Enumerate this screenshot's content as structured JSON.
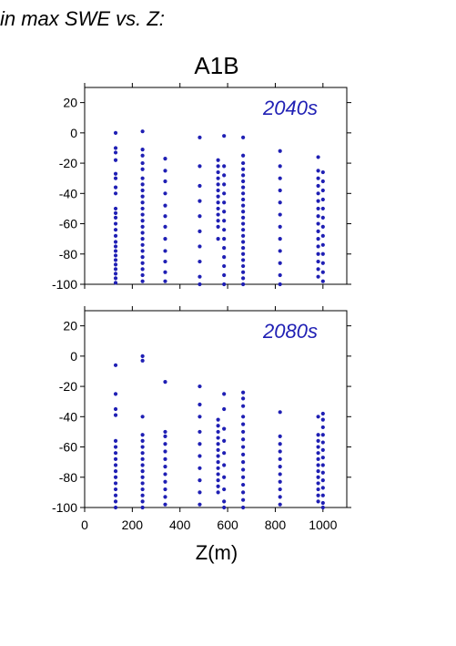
{
  "heading": "in max SWE vs. Z:",
  "chart_data": [
    {
      "type": "scatter",
      "title": "A1B",
      "panel_label": "2040s",
      "xlabel": "",
      "ylabel": "",
      "xlim": [
        0,
        1100
      ],
      "ylim": [
        -100,
        30
      ],
      "yticks": [
        20,
        0,
        -20,
        -40,
        -60,
        -80,
        -100
      ],
      "xticks": [
        0,
        200,
        400,
        600,
        800,
        1000
      ],
      "color": "#1f1fb4",
      "series": [
        {
          "x": 130,
          "y": [
            0,
            -10,
            -13,
            -18,
            -27,
            -30,
            -36,
            -40,
            -50,
            -53,
            -56,
            -60,
            -64,
            -68,
            -72,
            -75,
            -78,
            -81,
            -84,
            -87,
            -90,
            -93,
            -96,
            -99
          ]
        },
        {
          "x": 243,
          "y": [
            1,
            -11,
            -15,
            -20,
            -24,
            -30,
            -34,
            -38,
            -42,
            -46,
            -50,
            -54,
            -58,
            -62,
            -66,
            -70,
            -74,
            -78,
            -82,
            -86,
            -90,
            -94,
            -98
          ]
        },
        {
          "x": 338,
          "y": [
            -17,
            -25,
            -32,
            -40,
            -48,
            -55,
            -62,
            -70,
            -78,
            -85,
            -92,
            -98
          ]
        },
        {
          "x": 483,
          "y": [
            -3,
            -22,
            -35,
            -45,
            -55,
            -65,
            -75,
            -85,
            -95,
            -100
          ]
        },
        {
          "x": 560,
          "y": [
            -18,
            -22,
            -26,
            -30,
            -34,
            -38,
            -42,
            -46,
            -50,
            -54,
            -58,
            -62,
            -70
          ]
        },
        {
          "x": 585,
          "y": [
            -2,
            -22,
            -28,
            -34,
            -40,
            -46,
            -52,
            -58,
            -64,
            -70,
            -76,
            -82,
            -88,
            -94,
            -100
          ]
        },
        {
          "x": 665,
          "y": [
            -3,
            -15,
            -20,
            -24,
            -28,
            -32,
            -36,
            -40,
            -44,
            -48,
            -52,
            -56,
            -60,
            -64,
            -68,
            -72,
            -76,
            -80,
            -84,
            -88,
            -92,
            -96,
            -100
          ]
        },
        {
          "x": 820,
          "y": [
            -12,
            -22,
            -30,
            -38,
            -46,
            -54,
            -62,
            -70,
            -78,
            -86,
            -94,
            -100
          ]
        },
        {
          "x": 980,
          "y": [
            -16,
            -25,
            -30,
            -35,
            -40,
            -45,
            -50,
            -55,
            -60,
            -65,
            -70,
            -75,
            -80,
            -85,
            -90,
            -95
          ]
        },
        {
          "x": 1000,
          "y": [
            -26,
            -32,
            -38,
            -44,
            -50,
            -56,
            -62,
            -68,
            -74,
            -80,
            -86,
            -92,
            -98
          ]
        }
      ]
    },
    {
      "type": "scatter",
      "title": "",
      "panel_label": "2080s",
      "xlabel": "Z(m)",
      "ylabel": "",
      "xlim": [
        0,
        1100
      ],
      "ylim": [
        -100,
        30
      ],
      "yticks": [
        20,
        0,
        -20,
        -40,
        -60,
        -80,
        -100
      ],
      "xticks": [
        0,
        200,
        400,
        600,
        800,
        1000
      ],
      "xticklabels": [
        "0",
        "200",
        "400",
        "600",
        "800",
        "1000"
      ],
      "color": "#1f1fb4",
      "series": [
        {
          "x": 130,
          "y": [
            -6,
            -25,
            -35,
            -39,
            -56,
            -60,
            -64,
            -68,
            -72,
            -76,
            -80,
            -84,
            -88,
            -92,
            -96,
            -100
          ]
        },
        {
          "x": 243,
          "y": [
            0,
            -3,
            -40,
            -52,
            -56,
            -60,
            -64,
            -68,
            -72,
            -76,
            -80,
            -84,
            -88,
            -92,
            -96,
            -100
          ]
        },
        {
          "x": 338,
          "y": [
            -17,
            -50,
            -53,
            -58,
            -63,
            -68,
            -73,
            -78,
            -83,
            -88,
            -93,
            -98
          ]
        },
        {
          "x": 483,
          "y": [
            -20,
            -32,
            -40,
            -50,
            -58,
            -66,
            -74,
            -82,
            -90,
            -98
          ]
        },
        {
          "x": 560,
          "y": [
            -42,
            -46,
            -50,
            -54,
            -58,
            -62,
            -66,
            -70,
            -74,
            -78,
            -82,
            -86,
            -90
          ]
        },
        {
          "x": 585,
          "y": [
            -25,
            -35,
            -48,
            -56,
            -64,
            -72,
            -80,
            -88,
            -96,
            -100
          ]
        },
        {
          "x": 665,
          "y": [
            -24,
            -28,
            -33,
            -40,
            -45,
            -50,
            -55,
            -60,
            -65,
            -70,
            -75,
            -80,
            -85,
            -90,
            -95,
            -100
          ]
        },
        {
          "x": 820,
          "y": [
            -37,
            -53,
            -58,
            -63,
            -68,
            -73,
            -78,
            -83,
            -88,
            -93,
            -98
          ]
        },
        {
          "x": 980,
          "y": [
            -40,
            -52,
            -56,
            -60,
            -64,
            -68,
            -72,
            -76,
            -80,
            -84,
            -88,
            -92,
            -96
          ]
        },
        {
          "x": 1000,
          "y": [
            -38,
            -42,
            -47,
            -52,
            -57,
            -62,
            -67,
            -72,
            -77,
            -82,
            -87,
            -92,
            -97,
            -100
          ]
        }
      ]
    }
  ]
}
